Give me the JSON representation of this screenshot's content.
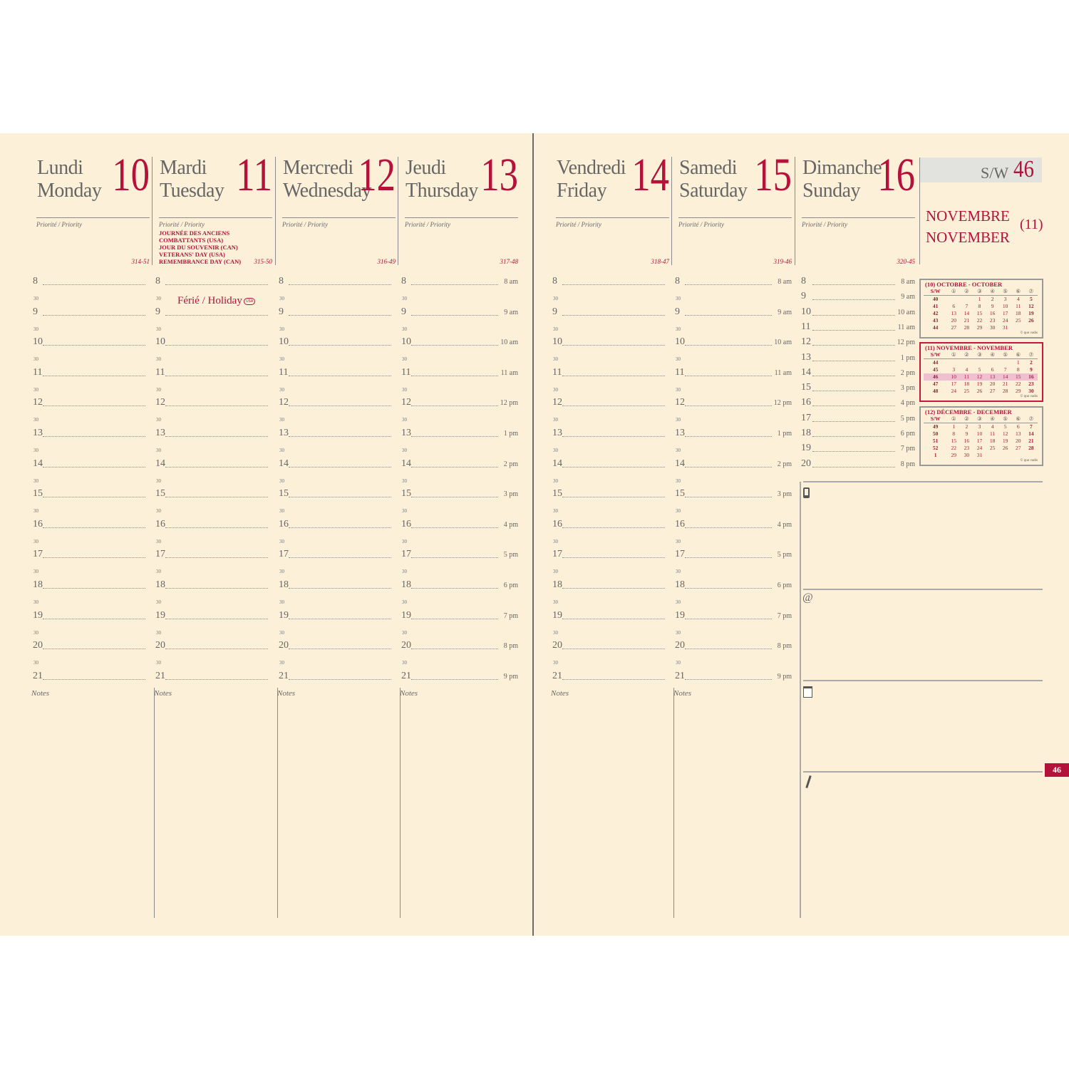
{
  "colors": {
    "accent": "#b3123a",
    "paper": "#fdf0d8",
    "ink": "#666666"
  },
  "priority_label": "Priorité / Priority",
  "notes_label": "Notes",
  "days": [
    {
      "fr": "Lundi",
      "en": "Monday",
      "num": "10",
      "code": "314-51",
      "holiday_lines": []
    },
    {
      "fr": "Mardi",
      "en": "Tuesday",
      "num": "11",
      "code": "315-50",
      "holiday_lines": [
        "JOURNÉE DES ANCIENS",
        "COMBATTANTS (USA)",
        "JOUR DU SOUVENIR (CAN)",
        "VETERANS' DAY (USA)",
        "REMEMBRANCE DAY (CAN)"
      ],
      "holiday_note": "Férié / Holiday",
      "holiday_badge": "USA"
    },
    {
      "fr": "Mercredi",
      "en": "Wednesday",
      "num": "12",
      "code": "316-49",
      "holiday_lines": []
    },
    {
      "fr": "Jeudi",
      "en": "Thursday",
      "num": "13",
      "code": "317-48",
      "holiday_lines": []
    },
    {
      "fr": "Vendredi",
      "en": "Friday",
      "num": "14",
      "code": "318-47",
      "holiday_lines": []
    },
    {
      "fr": "Samedi",
      "en": "Saturday",
      "num": "15",
      "code": "319-46",
      "holiday_lines": []
    },
    {
      "fr": "Dimanche",
      "en": "Sunday",
      "num": "16",
      "code": "320-45",
      "holiday_lines": []
    }
  ],
  "hours": [
    "8",
    "9",
    "10",
    "11",
    "12",
    "13",
    "14",
    "15",
    "16",
    "17",
    "18",
    "19",
    "20",
    "21"
  ],
  "half_label": "30",
  "ampm": [
    "8 am",
    "9 am",
    "10 am",
    "11 am",
    "12 pm",
    "1 pm",
    "2 pm",
    "3 pm",
    "4 pm",
    "5 pm",
    "6 pm",
    "7 pm",
    "8 pm",
    "9 pm"
  ],
  "sunday_hours": [
    "8",
    "9",
    "10",
    "11",
    "12",
    "13",
    "14",
    "15",
    "16",
    "17",
    "18",
    "19",
    "20"
  ],
  "week": {
    "label": "S/W",
    "number": "46",
    "month_fr": "NOVEMBRE",
    "month_en": "NOVEMBER",
    "month_num": "(11)",
    "tab": "46"
  },
  "mini_calendars": [
    {
      "title": "(10) OCTOBRE - OCTOBER",
      "header": [
        "S/W",
        "①",
        "②",
        "③",
        "④",
        "⑤",
        "⑥",
        "⑦"
      ],
      "rows": [
        [
          "40",
          "",
          "",
          "1",
          "2",
          "3",
          "4",
          "5"
        ],
        [
          "41",
          "6",
          "7",
          "8",
          "9",
          "10",
          "11",
          "12"
        ],
        [
          "42",
          "13",
          "14",
          "15",
          "16",
          "17",
          "18",
          "19"
        ],
        [
          "43",
          "20",
          "21",
          "22",
          "23",
          "24",
          "25",
          "26"
        ],
        [
          "44",
          "27",
          "28",
          "29",
          "30",
          "31",
          "",
          ""
        ]
      ],
      "copyright": "© quo vadis"
    },
    {
      "title": "(11) NOVEMBRE - NOVEMBER",
      "header": [
        "S/W",
        "①",
        "②",
        "③",
        "④",
        "⑤",
        "⑥",
        "⑦"
      ],
      "rows": [
        [
          "44",
          "",
          "",
          "",
          "",
          "",
          "1",
          "2"
        ],
        [
          "45",
          "3",
          "4",
          "5",
          "6",
          "7",
          "8",
          "9"
        ],
        [
          "46",
          "10",
          "11",
          "12",
          "13",
          "14",
          "15",
          "16"
        ],
        [
          "47",
          "17",
          "18",
          "19",
          "20",
          "21",
          "22",
          "23"
        ],
        [
          "48",
          "24",
          "25",
          "26",
          "27",
          "28",
          "29",
          "30"
        ]
      ],
      "copyright": "© quo vadis",
      "current": true,
      "highlight_week": "46"
    },
    {
      "title": "(12) DÉCEMBRE - DECEMBER",
      "header": [
        "S/W",
        "①",
        "②",
        "③",
        "④",
        "⑤",
        "⑥",
        "⑦"
      ],
      "rows": [
        [
          "49",
          "1",
          "2",
          "3",
          "4",
          "5",
          "6",
          "7"
        ],
        [
          "50",
          "8",
          "9",
          "10",
          "11",
          "12",
          "13",
          "14"
        ],
        [
          "51",
          "15",
          "16",
          "17",
          "18",
          "19",
          "20",
          "21"
        ],
        [
          "52",
          "22",
          "23",
          "24",
          "25",
          "26",
          "27",
          "28"
        ],
        [
          "1",
          "29",
          "30",
          "31",
          "",
          "",
          "",
          ""
        ]
      ],
      "copyright": "© quo vadis"
    }
  ],
  "side_sections": [
    {
      "icon": "phone-icon"
    },
    {
      "icon": "at-icon",
      "glyph": "@"
    },
    {
      "icon": "notepad-icon"
    },
    {
      "icon": "pencil-icon"
    }
  ]
}
